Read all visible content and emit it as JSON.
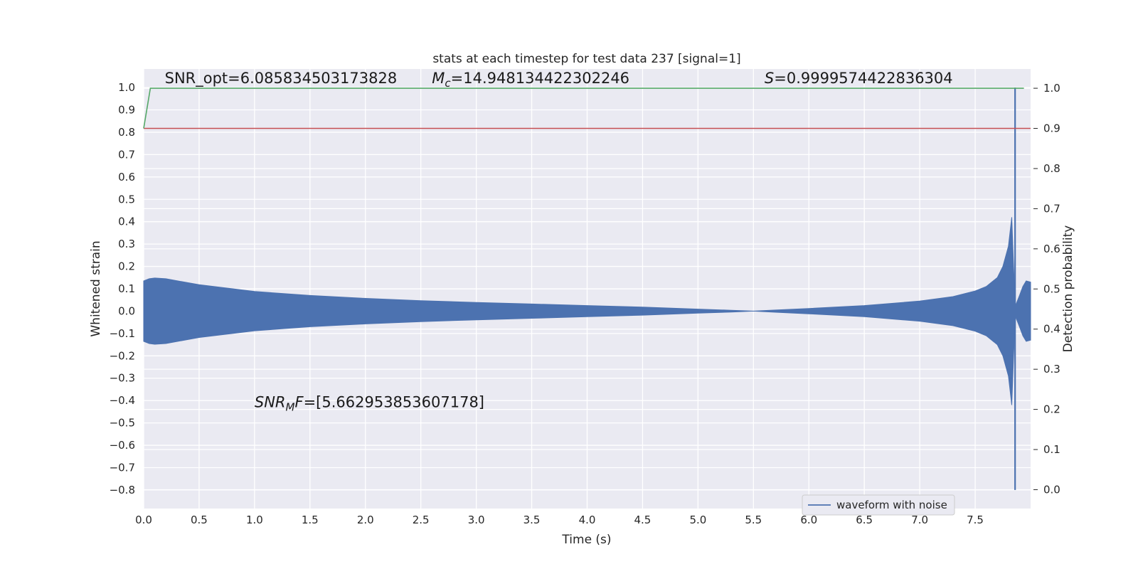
{
  "chart_data": {
    "type": "line",
    "title": "stats at each timestep for test data 237 [signal=1]",
    "xlabel": "Time (s)",
    "ylabel": "Whitened strain",
    "y2label": "Detection probability",
    "xlim": [
      0.0,
      8.0
    ],
    "ylim": [
      -0.883,
      1.083
    ],
    "y2lim": [
      -0.047,
      1.048
    ],
    "xticks": [
      "0.0",
      "0.5",
      "1.0",
      "1.5",
      "2.0",
      "2.5",
      "3.0",
      "3.5",
      "4.0",
      "4.5",
      "5.0",
      "5.5",
      "6.0",
      "6.5",
      "7.0",
      "7.5"
    ],
    "xtick_values": [
      0,
      0.5,
      1,
      1.5,
      2,
      2.5,
      3,
      3.5,
      4,
      4.5,
      5,
      5.5,
      6,
      6.5,
      7,
      7.5
    ],
    "yticks": [
      "1.0",
      "0.9",
      "0.8",
      "0.7",
      "0.6",
      "0.5",
      "0.4",
      "0.3",
      "0.2",
      "0.1",
      "0.0",
      "−0.1",
      "−0.2",
      "−0.3",
      "−0.4",
      "−0.5",
      "−0.6",
      "−0.7",
      "−0.8"
    ],
    "ytick_values": [
      1.0,
      0.9,
      0.8,
      0.7,
      0.6,
      0.5,
      0.4,
      0.3,
      0.2,
      0.1,
      0.0,
      -0.1,
      -0.2,
      -0.3,
      -0.4,
      -0.5,
      -0.6,
      -0.7,
      -0.8
    ],
    "y2ticks": [
      "1.0",
      "0.9",
      "0.8",
      "0.7",
      "0.6",
      "0.5",
      "0.4",
      "0.3",
      "0.2",
      "0.1",
      "0.0"
    ],
    "y2tick_values": [
      1.0,
      0.9,
      0.8,
      0.7,
      0.6,
      0.5,
      0.4,
      0.3,
      0.2,
      0.1,
      0.0
    ],
    "grid": true,
    "legend_position": "lower-right",
    "series": [
      {
        "name": "waveform with noise",
        "axis": "left",
        "color": "#4c72b0",
        "envelope_x": [
          0.0,
          0.05,
          0.1,
          0.2,
          0.5,
          1.0,
          1.5,
          2.0,
          2.5,
          3.0,
          3.5,
          4.0,
          4.5,
          5.0,
          5.3,
          5.5,
          5.7,
          6.0,
          6.5,
          7.0,
          7.3,
          7.5,
          7.6,
          7.7,
          7.75,
          7.8,
          7.83,
          7.86,
          7.9,
          7.93,
          7.96,
          8.0
        ],
        "envelope_y": [
          0.135,
          0.145,
          0.148,
          0.145,
          0.118,
          0.088,
          0.07,
          0.057,
          0.047,
          0.039,
          0.032,
          0.025,
          0.018,
          0.009,
          0.004,
          0.0,
          0.005,
          0.012,
          0.025,
          0.045,
          0.065,
          0.09,
          0.11,
          0.15,
          0.2,
          0.29,
          0.42,
          0.02,
          0.07,
          0.11,
          0.135,
          0.13
        ],
        "spike": {
          "x": 7.86,
          "y_top": 1.0,
          "y_bottom": -0.8
        }
      },
      {
        "name": "",
        "axis": "right",
        "color": "#55a868",
        "x": [
          0.0,
          0.06,
          7.94
        ],
        "y": [
          0.9,
          1.0,
          1.0
        ]
      },
      {
        "name": "",
        "axis": "right",
        "color": "#c44e52",
        "x": [
          0.0,
          8.0
        ],
        "y": [
          0.9,
          0.9
        ]
      }
    ],
    "annotations": [
      {
        "id": "snr-opt",
        "text": "SNR_opt=6.085834503173828",
        "x": 0.19,
        "y": 1.02,
        "italic": false
      },
      {
        "id": "chirp-mass",
        "text": "M",
        "sub": "c",
        "rest": "=14.948134422302246",
        "x": 2.6,
        "y": 1.02,
        "italic": true
      },
      {
        "id": "stat-s",
        "text": "S",
        "rest": "=0.9999574422836304",
        "x": 5.6,
        "y": 1.02,
        "italic": true
      },
      {
        "id": "snr-mf",
        "text": "SNR",
        "sub": "M",
        "sub2": "F",
        "rest": "=[5.662953853607178]",
        "x": 1.0,
        "y": -0.43,
        "italic": true
      }
    ]
  }
}
